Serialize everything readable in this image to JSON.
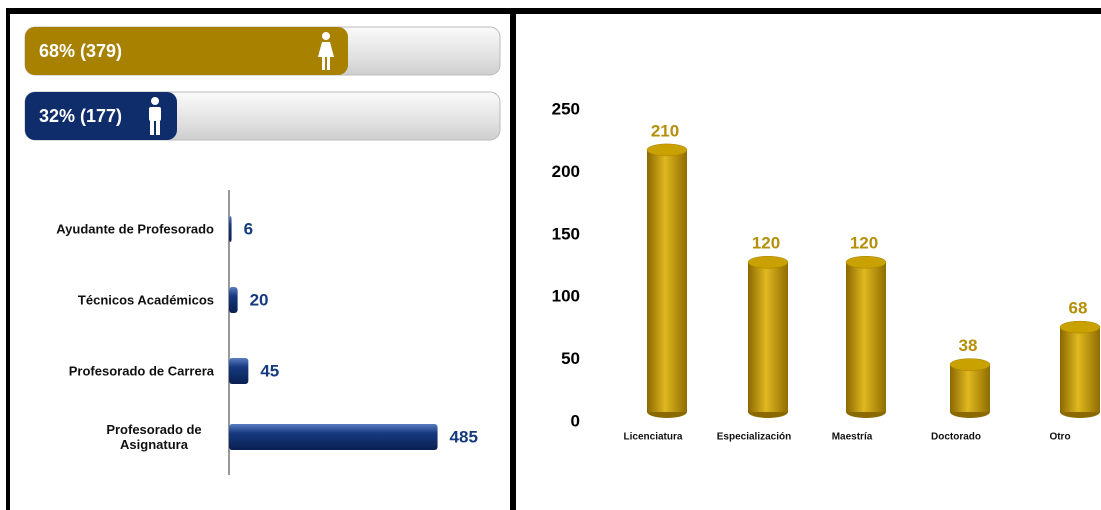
{
  "chart_data": [
    {
      "type": "progress",
      "value_labels": [
        "68% (379)",
        "32% (177)"
      ],
      "values": [
        68,
        32
      ],
      "counts": [
        379,
        177
      ],
      "colors": [
        "#a88100",
        "#0f2c6b"
      ],
      "xlim": [
        0,
        100
      ]
    },
    {
      "type": "hbar",
      "categories": [
        "Ayudante de Profesorado",
        "Técnicos Académicos",
        "Profesorado de Carrera",
        "Profesorado de Asignatura"
      ],
      "values": [
        6,
        20,
        45,
        485
      ],
      "color": "#163a80",
      "xlim": [
        0,
        500
      ]
    },
    {
      "type": "cylinder",
      "categories": [
        "Licenciatura",
        "Especialización",
        "Maestría",
        "Doctorado",
        "Otro"
      ],
      "values": [
        210,
        120,
        120,
        38,
        68
      ],
      "color": "#c9a100",
      "ylim": [
        0,
        250
      ],
      "yticks": [
        0,
        50,
        100,
        150,
        200,
        250
      ]
    }
  ]
}
